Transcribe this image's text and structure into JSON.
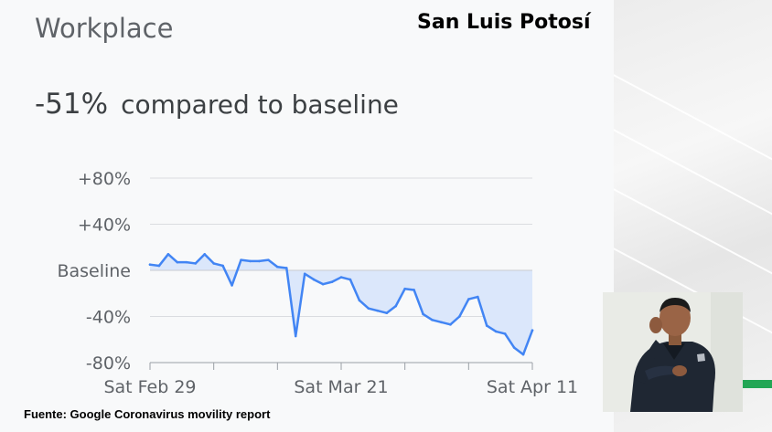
{
  "header": {
    "metric_title": "Workplace",
    "region": "San Luis Potosí"
  },
  "summary": {
    "change_value": "-51%",
    "change_text": "compared to baseline"
  },
  "source": {
    "note": "Fuente: Google Coronavirus movility report"
  },
  "colors": {
    "line": "#4285f4",
    "fill": "#dbe7fb",
    "text": "#5f6368",
    "grid": "#dadce0",
    "accent": "#22a655"
  },
  "chart_data": {
    "type": "area",
    "title": "",
    "xlabel": "",
    "ylabel": "",
    "ylim": [
      -80,
      80
    ],
    "y_ticks": [
      {
        "value": 80,
        "label": "+80%"
      },
      {
        "value": 40,
        "label": "+40%"
      },
      {
        "value": 0,
        "label": "Baseline"
      },
      {
        "value": -40,
        "label": "-40%"
      },
      {
        "value": -80,
        "label": "-80%"
      }
    ],
    "x_ticks": [
      {
        "index": 0,
        "label": "Sat Feb 29"
      },
      {
        "index": 21,
        "label": "Sat Mar 21"
      },
      {
        "index": 42,
        "label": "Sat Apr 11"
      }
    ],
    "x": [
      "Feb 29",
      "Mar 1",
      "Mar 2",
      "Mar 3",
      "Mar 4",
      "Mar 5",
      "Mar 6",
      "Mar 7",
      "Mar 8",
      "Mar 9",
      "Mar 10",
      "Mar 11",
      "Mar 12",
      "Mar 13",
      "Mar 14",
      "Mar 15",
      "Mar 16",
      "Mar 17",
      "Mar 18",
      "Mar 19",
      "Mar 20",
      "Mar 21",
      "Mar 22",
      "Mar 23",
      "Mar 24",
      "Mar 25",
      "Mar 26",
      "Mar 27",
      "Mar 28",
      "Mar 29",
      "Mar 30",
      "Mar 31",
      "Apr 1",
      "Apr 2",
      "Apr 3",
      "Apr 4",
      "Apr 5",
      "Apr 6",
      "Apr 7",
      "Apr 8",
      "Apr 9",
      "Apr 10",
      "Apr 11"
    ],
    "series": [
      {
        "values": [
          5,
          4,
          14,
          7,
          7,
          6,
          14,
          6,
          4,
          -13,
          9,
          8,
          8,
          9,
          3,
          2,
          -57,
          -3,
          -8,
          -12,
          -10,
          -6,
          -8,
          -26,
          -33,
          -35,
          -37,
          -31,
          -16,
          -17,
          -38,
          -43,
          -45,
          -47,
          -40,
          -25,
          -23,
          -48,
          -53,
          -55,
          -67,
          -73,
          -52
        ]
      }
    ]
  }
}
